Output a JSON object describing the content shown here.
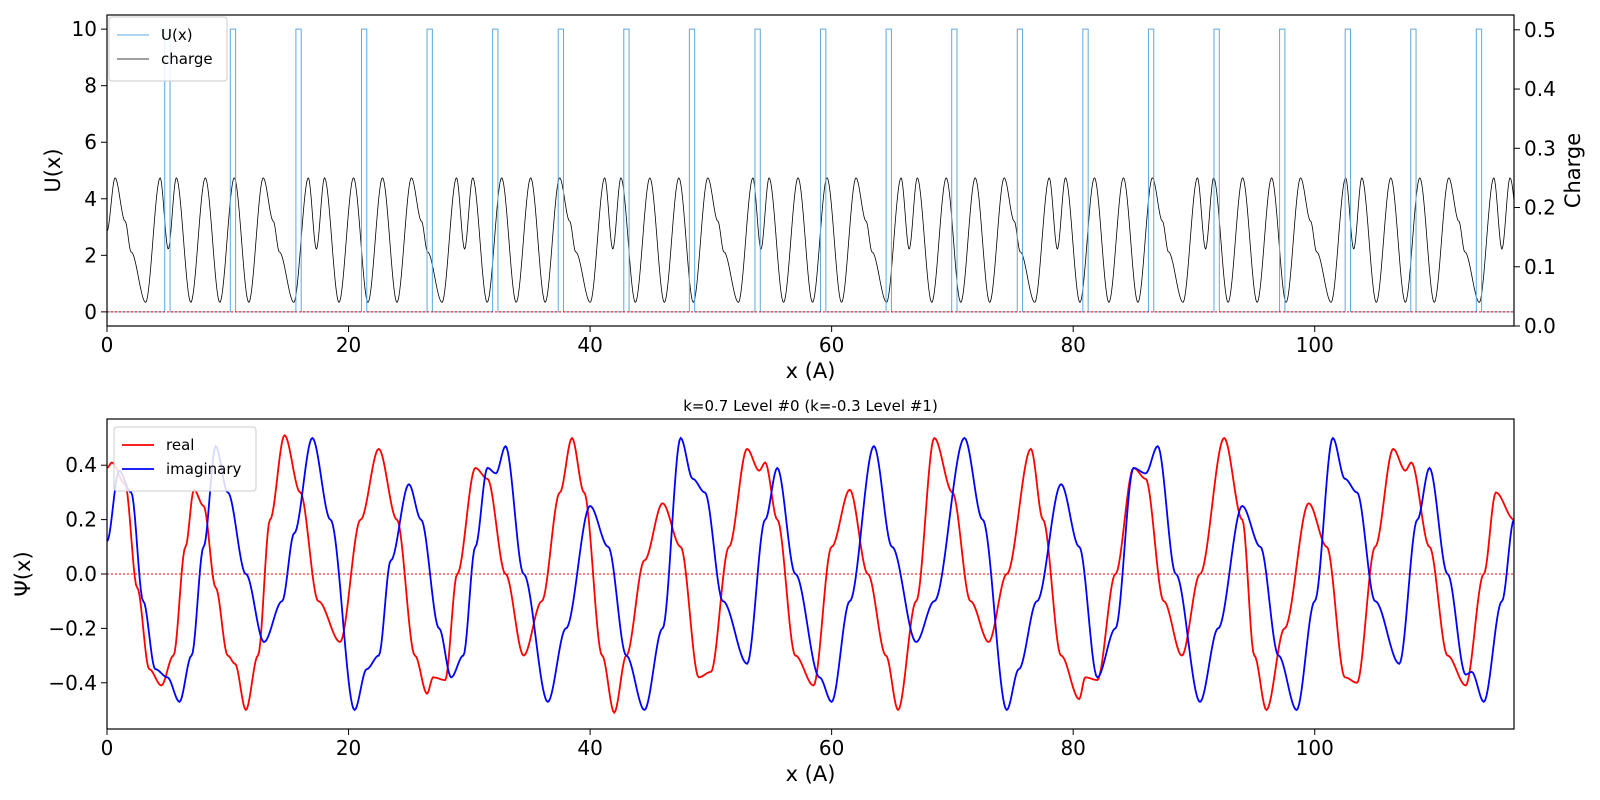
{
  "chart_data": [
    {
      "type": "line",
      "title": "",
      "xlabel": "x (A)",
      "ylabel": "U(x)",
      "y2label": "Charge",
      "xlim": [
        0,
        116.5
      ],
      "ylim": [
        -0.5,
        10.5
      ],
      "y2lim": [
        0.0,
        0.525
      ],
      "xticks": [
        "0",
        "20",
        "40",
        "60",
        "80",
        "100"
      ],
      "yticks": [
        "0",
        "2",
        "4",
        "6",
        "8",
        "10"
      ],
      "y2ticks": [
        "0.0",
        "0.1",
        "0.2",
        "0.3",
        "0.4",
        "0.5"
      ],
      "legend": {
        "placement": "top-left",
        "entries": [
          "U(x)",
          "charge"
        ]
      },
      "grid": false,
      "series": [
        {
          "name": "U(x)",
          "axis": "left",
          "color": "#5fa8dc",
          "kind": "square-barrier-train",
          "period": 5.43,
          "barrier_start": 4.78,
          "barrier_width": 0.44,
          "low": 0,
          "high": 10
        },
        {
          "name": "charge",
          "axis": "right",
          "color": "#000000",
          "kind": "oscillation",
          "points": [
            [
              0.0,
              0.16
            ],
            [
              0.67,
              0.25
            ],
            [
              1.5,
              0.177
            ],
            [
              2.0,
              0.125
            ],
            [
              3.2,
              0.04
            ],
            [
              4.4,
              0.25
            ],
            [
              5.07,
              0.13
            ],
            [
              5.74,
              0.25
            ],
            [
              6.94,
              0.04
            ],
            [
              8.14,
              0.25
            ],
            [
              9.34,
              0.04
            ],
            [
              10.54,
              0.25
            ],
            [
              11.74,
              0.04
            ],
            [
              12.94,
              0.25
            ]
          ]
        },
        {
          "name": "",
          "axis": "left",
          "color": "#ff0000",
          "kind": "reference-line",
          "style": "dotted",
          "y": 0
        }
      ]
    },
    {
      "type": "line",
      "title": "k=0.7 Level #0 (k=-0.3 Level #1)",
      "xlabel": "x (A)",
      "ylabel": "Ψ(x)",
      "xlim": [
        0,
        116.5
      ],
      "ylim": [
        -0.57,
        0.57
      ],
      "xticks": [
        "0",
        "20",
        "40",
        "60",
        "80",
        "100"
      ],
      "yticks": [
        "−0.4",
        "−0.2",
        "0.0",
        "0.2",
        "0.4"
      ],
      "legend": {
        "placement": "top-left",
        "entries": [
          "real",
          "imaginary"
        ]
      },
      "grid": false,
      "series": [
        {
          "name": "real",
          "color": "#ff0000",
          "points": [
            [
              0,
              0.39
            ],
            [
              0.4,
              0.41
            ],
            [
              1.5,
              0.33
            ],
            [
              2.5,
              -0.05
            ],
            [
              3.5,
              -0.35
            ],
            [
              4.5,
              -0.41
            ],
            [
              5.5,
              -0.3
            ],
            [
              6.5,
              0.1
            ],
            [
              7.2,
              0.31
            ],
            [
              8.0,
              0.25
            ],
            [
              9.0,
              -0.05
            ],
            [
              10.0,
              -0.3
            ],
            [
              10.6,
              -0.33
            ],
            [
              11.5,
              -0.5
            ],
            [
              12.5,
              -0.3
            ],
            [
              13.5,
              0.2
            ],
            [
              14.7,
              0.51
            ],
            [
              16.0,
              0.3
            ],
            [
              17.5,
              -0.1
            ],
            [
              19.3,
              -0.25
            ],
            [
              21.0,
              0.2
            ],
            [
              22.5,
              0.46
            ],
            [
              24.0,
              0.2
            ],
            [
              25.5,
              -0.3
            ],
            [
              26.5,
              -0.44
            ],
            [
              27.0,
              -0.38
            ],
            [
              28.0,
              -0.39
            ],
            [
              29.0,
              0.0
            ],
            [
              30.5,
              0.39
            ],
            [
              31.5,
              0.35
            ],
            [
              33.0,
              0.0
            ],
            [
              34.5,
              -0.3
            ],
            [
              36.0,
              -0.1
            ],
            [
              37.5,
              0.3
            ],
            [
              38.5,
              0.5
            ],
            [
              39.5,
              0.3
            ],
            [
              41.0,
              -0.3
            ],
            [
              42.0,
              -0.51
            ],
            [
              43.0,
              -0.3
            ],
            [
              44.5,
              0.05
            ],
            [
              46.0,
              0.26
            ],
            [
              47.5,
              0.1
            ],
            [
              49.0,
              -0.38
            ],
            [
              50.0,
              -0.36
            ],
            [
              51.5,
              0.1
            ],
            [
              53.0,
              0.46
            ],
            [
              54.0,
              0.38
            ],
            [
              54.5,
              0.41
            ],
            [
              55.5,
              0.2
            ],
            [
              57.0,
              -0.3
            ],
            [
              58.5,
              -0.41
            ],
            [
              60.0,
              0.1
            ],
            [
              61.5,
              0.31
            ],
            [
              63.0,
              0.0
            ],
            [
              64.5,
              -0.3
            ],
            [
              65.5,
              -0.5
            ],
            [
              67.0,
              -0.1
            ],
            [
              68.5,
              0.5
            ],
            [
              70.0,
              0.3
            ],
            [
              71.5,
              -0.1
            ],
            [
              73.0,
              -0.25
            ],
            [
              74.5,
              0.0
            ],
            [
              76.5,
              0.46
            ],
            [
              77.5,
              0.2
            ],
            [
              79.0,
              -0.3
            ],
            [
              80.5,
              -0.46
            ],
            [
              81.0,
              -0.38
            ],
            [
              82.0,
              -0.39
            ],
            [
              83.5,
              0.0
            ],
            [
              85.0,
              0.39
            ],
            [
              86.0,
              0.35
            ],
            [
              87.5,
              -0.1
            ],
            [
              89.0,
              -0.3
            ],
            [
              90.5,
              0.0
            ],
            [
              92.5,
              0.5
            ],
            [
              94.0,
              0.2
            ],
            [
              95.0,
              -0.3
            ],
            [
              96.0,
              -0.5
            ],
            [
              97.5,
              -0.2
            ],
            [
              99.5,
              0.26
            ],
            [
              101.0,
              0.1
            ],
            [
              102.5,
              -0.38
            ],
            [
              103.5,
              -0.4
            ],
            [
              105.0,
              0.1
            ],
            [
              106.5,
              0.46
            ],
            [
              107.5,
              0.38
            ],
            [
              108.0,
              0.41
            ],
            [
              109.5,
              0.1
            ],
            [
              111.0,
              -0.3
            ],
            [
              112.5,
              -0.41
            ],
            [
              114.0,
              0.0
            ],
            [
              115.0,
              0.3
            ],
            [
              116.5,
              0.2
            ]
          ]
        },
        {
          "name": "imaginary",
          "color": "#0000ff",
          "points": [
            [
              0,
              0.12
            ],
            [
              1.0,
              0.38
            ],
            [
              2.0,
              0.3
            ],
            [
              3.0,
              -0.1
            ],
            [
              4.0,
              -0.35
            ],
            [
              5.0,
              -0.38
            ],
            [
              6.0,
              -0.47
            ],
            [
              7.0,
              -0.3
            ],
            [
              8.0,
              0.1
            ],
            [
              9.0,
              0.47
            ],
            [
              10.0,
              0.3
            ],
            [
              11.5,
              0.0
            ],
            [
              13.0,
              -0.25
            ],
            [
              14.5,
              -0.1
            ],
            [
              15.5,
              0.15
            ],
            [
              17.0,
              0.5
            ],
            [
              18.5,
              0.2
            ],
            [
              20.5,
              -0.5
            ],
            [
              21.5,
              -0.35
            ],
            [
              22.5,
              -0.3
            ],
            [
              23.5,
              0.05
            ],
            [
              25.0,
              0.33
            ],
            [
              26.0,
              0.2
            ],
            [
              27.5,
              -0.2
            ],
            [
              28.5,
              -0.38
            ],
            [
              29.5,
              -0.3
            ],
            [
              30.5,
              0.1
            ],
            [
              31.5,
              0.39
            ],
            [
              32.2,
              0.37
            ],
            [
              33.0,
              0.47
            ],
            [
              34.5,
              0.0
            ],
            [
              36.5,
              -0.47
            ],
            [
              38.0,
              -0.2
            ],
            [
              40.0,
              0.25
            ],
            [
              41.5,
              0.1
            ],
            [
              43.0,
              -0.3
            ],
            [
              44.5,
              -0.5
            ],
            [
              46.0,
              -0.2
            ],
            [
              47.5,
              0.5
            ],
            [
              48.5,
              0.35
            ],
            [
              49.5,
              0.3
            ],
            [
              51.0,
              -0.1
            ],
            [
              53.0,
              -0.33
            ],
            [
              54.5,
              0.2
            ],
            [
              55.5,
              0.39
            ],
            [
              57.0,
              0.0
            ],
            [
              59.0,
              -0.38
            ],
            [
              60.0,
              -0.47
            ],
            [
              61.5,
              -0.1
            ],
            [
              63.5,
              0.47
            ],
            [
              65.0,
              0.1
            ],
            [
              67.0,
              -0.25
            ],
            [
              68.5,
              -0.1
            ],
            [
              71.0,
              0.5
            ],
            [
              72.5,
              0.2
            ],
            [
              74.5,
              -0.5
            ],
            [
              75.5,
              -0.35
            ],
            [
              77.0,
              -0.1
            ],
            [
              79.0,
              0.33
            ],
            [
              80.5,
              0.1
            ],
            [
              82.0,
              -0.38
            ],
            [
              83.5,
              -0.2
            ],
            [
              85.0,
              0.39
            ],
            [
              86.0,
              0.37
            ],
            [
              87.0,
              0.47
            ],
            [
              88.5,
              0.0
            ],
            [
              90.5,
              -0.47
            ],
            [
              92.0,
              -0.2
            ],
            [
              94.0,
              0.25
            ],
            [
              95.5,
              0.1
            ],
            [
              97.0,
              -0.3
            ],
            [
              98.5,
              -0.5
            ],
            [
              100.0,
              -0.1
            ],
            [
              101.5,
              0.5
            ],
            [
              102.5,
              0.35
            ],
            [
              103.5,
              0.3
            ],
            [
              105.0,
              -0.1
            ],
            [
              107.0,
              -0.33
            ],
            [
              108.5,
              0.2
            ],
            [
              109.5,
              0.39
            ],
            [
              111.0,
              0.0
            ],
            [
              112.5,
              -0.37
            ],
            [
              113.0,
              -0.36
            ],
            [
              114.0,
              -0.47
            ],
            [
              115.5,
              -0.1
            ],
            [
              116.5,
              0.2
            ]
          ]
        },
        {
          "name": "",
          "color": "#ff0000",
          "kind": "reference-line",
          "style": "dotted",
          "y": 0
        }
      ]
    }
  ]
}
